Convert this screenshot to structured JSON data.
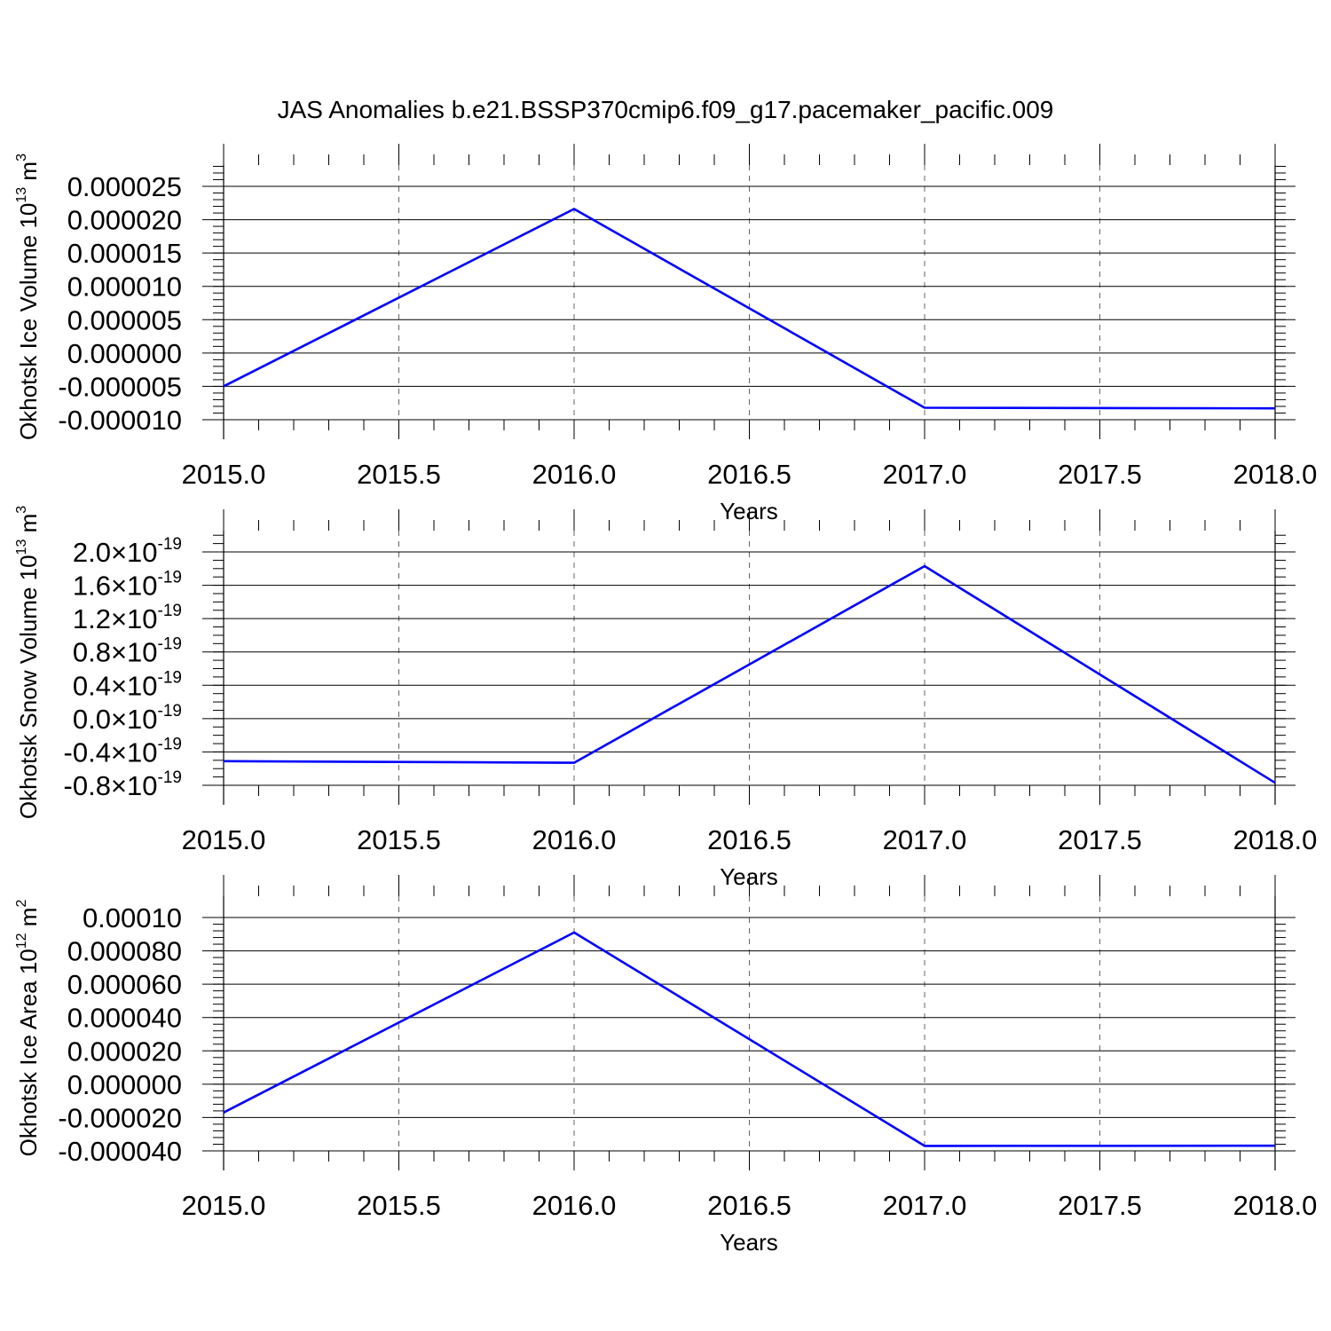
{
  "title": "JAS Anomalies b.e21.BSSP370cmip6.f09_g17.pacemaker_pacific.009",
  "chart_data": [
    {
      "type": "line",
      "title": "",
      "xlabel": "Years",
      "ylabel": "Okhotsk Ice Volume 10",
      "ylabel_sup": "13",
      "ylabel_unit": " m",
      "ylabel_unit_sup": "3",
      "xlim": [
        2015.0,
        2018.0
      ],
      "ylim": [
        -1e-05,
        2.85e-05
      ],
      "xticks": [
        "2015.0",
        "2015.5",
        "2016.0",
        "2016.5",
        "2017.0",
        "2017.5",
        "2018.0"
      ],
      "yticks": [
        {
          "value": 2.5e-05,
          "label": "0.000025"
        },
        {
          "value": 2e-05,
          "label": "0.000020"
        },
        {
          "value": 1.5e-05,
          "label": "0.000015"
        },
        {
          "value": 1e-05,
          "label": "0.000010"
        },
        {
          "value": 5e-06,
          "label": "0.000005"
        },
        {
          "value": 0.0,
          "label": "0.000000"
        },
        {
          "value": -5e-06,
          "label": "-0.000005"
        },
        {
          "value": -1e-05,
          "label": "-0.000010"
        }
      ],
      "minor_y_step": 1e-06,
      "grid": "x dashed",
      "series": [
        {
          "x": [
            2015,
            2016,
            2017,
            2018
          ],
          "values": [
            -5e-06,
            2.16e-05,
            -8.2e-06,
            -8.3e-06
          ],
          "color": "#0000ff"
        }
      ]
    },
    {
      "type": "line",
      "title": "",
      "xlabel": "Years",
      "ylabel": "Okhotsk Snow Volume 10",
      "ylabel_sup": "13",
      "ylabel_unit": " m",
      "ylabel_unit_sup": "3",
      "xlim": [
        2015.0,
        2018.0
      ],
      "ylim": [
        -8e-20,
        2.3e-19
      ],
      "xticks": [
        "2015.0",
        "2015.5",
        "2016.0",
        "2016.5",
        "2017.0",
        "2017.5",
        "2018.0"
      ],
      "yticks": [
        {
          "value": 2e-19,
          "label": "2.0",
          "exp": "-19"
        },
        {
          "value": 1.6e-19,
          "label": "1.6",
          "exp": "-19"
        },
        {
          "value": 1.2e-19,
          "label": "1.2",
          "exp": "-19"
        },
        {
          "value": 8e-20,
          "label": "0.8",
          "exp": "-19"
        },
        {
          "value": 4e-20,
          "label": "0.4",
          "exp": "-19"
        },
        {
          "value": 0.0,
          "label": "0.0",
          "exp": "-19"
        },
        {
          "value": -4e-20,
          "label": "-0.4",
          "exp": "-19"
        },
        {
          "value": -8e-20,
          "label": "-0.8",
          "exp": "-19"
        }
      ],
      "tick_times": "×10",
      "minor_y_step": 1e-20,
      "grid": "x dashed",
      "series": [
        {
          "x": [
            2015,
            2016,
            2017,
            2018
          ],
          "values": [
            -5.1e-20,
            -5.3e-20,
            1.83e-19,
            -7.7e-20
          ],
          "color": "#0000ff"
        }
      ]
    },
    {
      "type": "line",
      "title": "",
      "xlabel": "Years",
      "ylabel": "Okhotsk Ice Area 10",
      "ylabel_sup": "12",
      "ylabel_unit": " m",
      "ylabel_unit_sup": "2",
      "xlim": [
        2015.0,
        2018.0
      ],
      "ylim": [
        -4e-05,
        0.0001
      ],
      "xticks": [
        "2015.0",
        "2015.5",
        "2016.0",
        "2016.5",
        "2017.0",
        "2017.5",
        "2018.0"
      ],
      "yticks": [
        {
          "value": 0.0001,
          "label": "0.00010"
        },
        {
          "value": 8e-05,
          "label": "0.000080"
        },
        {
          "value": 6e-05,
          "label": "0.000060"
        },
        {
          "value": 4e-05,
          "label": "0.000040"
        },
        {
          "value": 2e-05,
          "label": "0.000020"
        },
        {
          "value": 0.0,
          "label": "0.000000"
        },
        {
          "value": -2e-05,
          "label": "-0.000020"
        },
        {
          "value": -4e-05,
          "label": "-0.000040"
        }
      ],
      "minor_y_step": 4e-06,
      "grid": "x dashed",
      "series": [
        {
          "x": [
            2015,
            2016,
            2017,
            2018
          ],
          "values": [
            -1.7e-05,
            9.1e-05,
            -3.7e-05,
            -3.69e-05
          ],
          "color": "#0000ff"
        }
      ]
    }
  ]
}
